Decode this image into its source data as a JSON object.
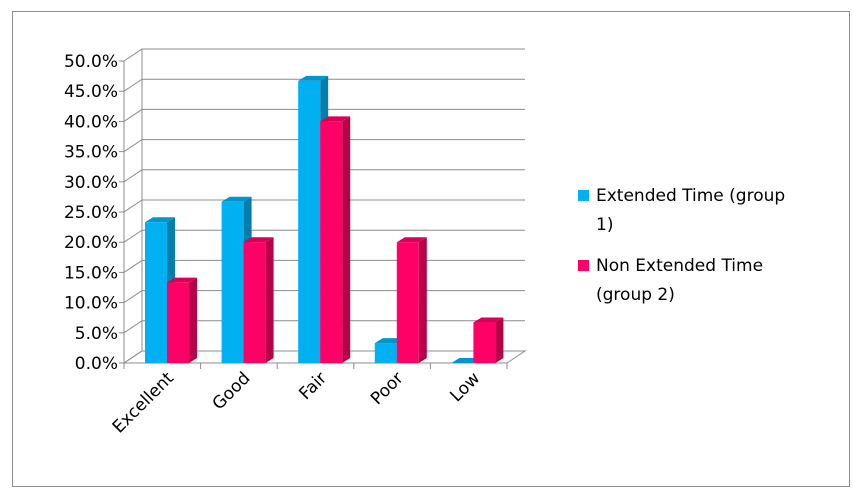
{
  "chart_data": {
    "type": "bar",
    "categories": [
      "Excellent",
      "Good",
      "Fair",
      "Poor",
      "Low"
    ],
    "series": [
      {
        "name": "Extended Time (group 1)",
        "values": [
          23.3,
          26.7,
          46.7,
          3.3,
          0.0
        ],
        "color": "#00b0f0",
        "legend_lines": [
          "Extended Time (group",
          "1)"
        ]
      },
      {
        "name": "Non Extended Time (group 2)",
        "values": [
          13.3,
          20.0,
          40.0,
          20.0,
          6.7
        ],
        "color": "#ff0066",
        "legend_lines": [
          "Non Extended Time",
          "(group 2)"
        ]
      }
    ],
    "y_ticks": [
      "0.0%",
      "5.0%",
      "10.0%",
      "15.0%",
      "20.0%",
      "25.0%",
      "30.0%",
      "35.0%",
      "40.0%",
      "45.0%",
      "50.0%"
    ],
    "ylim": [
      0,
      50
    ],
    "y_unit": "%",
    "grid": true,
    "style": "3d-column",
    "legend_position": "right",
    "title": "",
    "xlabel": "",
    "ylabel": ""
  }
}
